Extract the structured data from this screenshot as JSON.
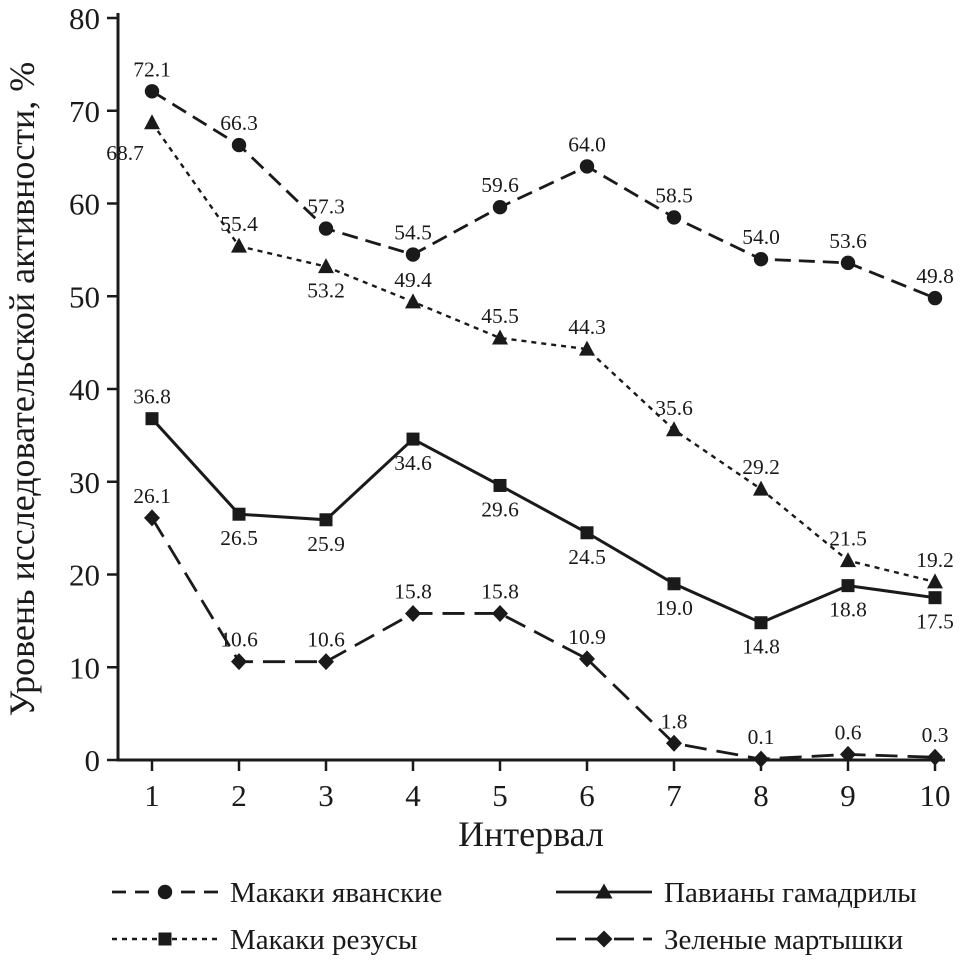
{
  "chart_data": {
    "type": "line",
    "title": "",
    "xlabel": "Интервал",
    "ylabel": "Уровень исследовательской активности, %",
    "x": [
      1,
      2,
      3,
      4,
      5,
      6,
      7,
      8,
      9,
      10
    ],
    "ylim": [
      0,
      80
    ],
    "yticks": [
      0,
      10,
      20,
      30,
      40,
      50,
      60,
      70,
      80
    ],
    "grid": false,
    "legend_position": "bottom",
    "line_color": "#1a1a1a",
    "background_color": "#ffffff",
    "series": [
      {
        "name": "Макаки яванские",
        "marker": "circle",
        "line_style": "dashed",
        "values": [
          72.1,
          66.3,
          57.3,
          54.5,
          59.6,
          64.0,
          58.5,
          54.0,
          53.6,
          49.8
        ]
      },
      {
        "name": "Павианы гамадрилы",
        "marker": "triangle",
        "line_style": "short-dash",
        "values": [
          68.7,
          55.4,
          53.2,
          49.4,
          45.5,
          44.3,
          35.6,
          29.2,
          21.5,
          19.2
        ]
      },
      {
        "name": "Макаки резусы",
        "marker": "square",
        "line_style": "solid",
        "values": [
          36.8,
          26.5,
          25.9,
          34.6,
          29.6,
          24.5,
          19.0,
          14.8,
          18.8,
          17.5
        ]
      },
      {
        "name": "Зеленые мартышки",
        "marker": "diamond",
        "line_style": "long-dash",
        "values": [
          26.1,
          10.6,
          10.6,
          15.8,
          15.8,
          10.9,
          1.8,
          0.1,
          0.6,
          0.3
        ]
      }
    ]
  }
}
